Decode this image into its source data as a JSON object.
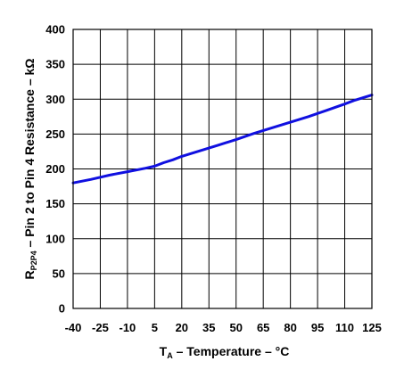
{
  "chart_data": {
    "type": "line",
    "title": "",
    "xlabel": {
      "main": "T",
      "sub": "A",
      "rest": " – Temperature – °C"
    },
    "ylabel": {
      "main": "R",
      "sub": "P2P4",
      "rest": " – Pin 2 to Pin 4 Resistance – kΩ"
    },
    "xlim": [
      -40,
      125
    ],
    "ylim": [
      0,
      400
    ],
    "xticks": [
      -40,
      -25,
      -10,
      5,
      20,
      35,
      50,
      65,
      80,
      95,
      110,
      125
    ],
    "xtick_labels": [
      "-40",
      "-25",
      "-10",
      "5",
      "20",
      "35",
      "50",
      "65",
      "80",
      "95",
      "110",
      "125"
    ],
    "yticks": [
      0,
      50,
      100,
      150,
      200,
      250,
      300,
      350,
      400
    ],
    "ytick_labels": [
      "0",
      "50",
      "100",
      "150",
      "200",
      "250",
      "300",
      "350",
      "400"
    ],
    "x_grid_step": 15,
    "grid": true,
    "series": [
      {
        "color": "#1010e0",
        "x": [
          -40,
          -30,
          -20,
          -10,
          0,
          5,
          10,
          15,
          20,
          30,
          40,
          50,
          60,
          70,
          80,
          90,
          100,
          110,
          115,
          120,
          125
        ],
        "y": [
          180,
          185,
          191,
          196,
          201,
          204,
          209,
          213,
          218,
          226,
          234,
          242,
          251,
          259,
          267,
          275,
          284,
          293,
          298,
          302,
          306
        ]
      }
    ]
  }
}
